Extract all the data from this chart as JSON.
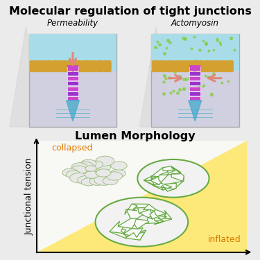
{
  "title": "Molecular regulation of tight junctions",
  "title_fontsize": 11.5,
  "bg_color": "#ebebeb",
  "lumen_title": "Lumen Morphology",
  "lumen_ylabel": "Junctional tension",
  "collapsed_label": "collapsed",
  "inflated_label": "inflated",
  "label_color": "#e07800",
  "permeability_label": "Permeability",
  "actomyosin_label": "Actomyosin",
  "arrow_color": "#e08878",
  "junction_color_a": "#cc44cc",
  "junction_color_b": "#9933cc",
  "microvilli_color": "#d4a030",
  "cell_top_color": "#a8dce8",
  "cell_bottom_color": "#d0d0e0",
  "green_dots_color": "#88cc44",
  "triangle_bg_color": "#d8d8d8",
  "sphere_edge_color": "#66aa44",
  "sphere_face_color": "#f0f0f0",
  "inflated_bg": "#fce97a",
  "axis_bg": "#f5f5f2",
  "lumen_box_bg": "#f8f8f5"
}
